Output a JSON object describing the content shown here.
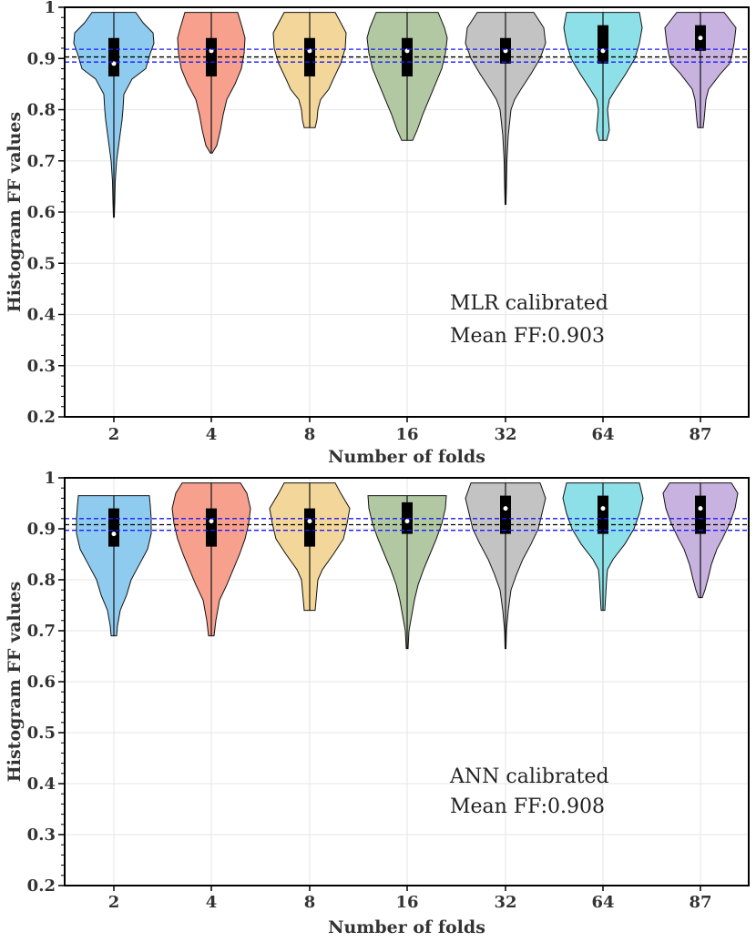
{
  "chart_data": [
    {
      "type": "violin",
      "xlabel": "Number of folds",
      "ylabel": "Histogram FF values",
      "ylim": [
        0.2,
        1.0
      ],
      "yticks": [
        "0.2",
        "0.3",
        "0.4",
        "0.5",
        "0.6",
        "0.7",
        "0.8",
        "0.9",
        "1"
      ],
      "categories": [
        "2",
        "4",
        "8",
        "16",
        "32",
        "64",
        "87"
      ],
      "colors": [
        "#8ecbef",
        "#f7a08e",
        "#f3d699",
        "#b2c8a3",
        "#c3c3c3",
        "#8de0e8",
        "#c8b2df"
      ],
      "annotation": [
        "MLR calibrated",
        "Mean FF:0.903"
      ],
      "reference_lines": [
        0.893,
        0.903,
        0.918
      ],
      "violins": [
        {
          "min": 0.59,
          "max": 0.99,
          "q1": 0.865,
          "median": 0.89,
          "q3": 0.94,
          "profile": [
            [
              0.59,
              0.5
            ],
            [
              0.62,
              1
            ],
            [
              0.66,
              1.5
            ],
            [
              0.7,
              3
            ],
            [
              0.74,
              6
            ],
            [
              0.78,
              9
            ],
            [
              0.8,
              10
            ],
            [
              0.83,
              11
            ],
            [
              0.86,
              20
            ],
            [
              0.88,
              35
            ],
            [
              0.91,
              40
            ],
            [
              0.93,
              44
            ],
            [
              0.95,
              43
            ],
            [
              0.97,
              32
            ],
            [
              0.99,
              24
            ]
          ]
        },
        {
          "min": 0.715,
          "max": 0.99,
          "q1": 0.865,
          "median": 0.915,
          "q3": 0.94,
          "profile": [
            [
              0.715,
              1
            ],
            [
              0.73,
              6
            ],
            [
              0.76,
              10
            ],
            [
              0.79,
              13
            ],
            [
              0.82,
              17
            ],
            [
              0.85,
              26
            ],
            [
              0.88,
              33
            ],
            [
              0.91,
              36
            ],
            [
              0.94,
              37
            ],
            [
              0.96,
              34
            ],
            [
              0.99,
              29
            ]
          ]
        },
        {
          "min": 0.765,
          "max": 0.99,
          "q1": 0.865,
          "median": 0.915,
          "q3": 0.94,
          "profile": [
            [
              0.765,
              6
            ],
            [
              0.78,
              8
            ],
            [
              0.8,
              9
            ],
            [
              0.82,
              12
            ],
            [
              0.84,
              21
            ],
            [
              0.86,
              26
            ],
            [
              0.89,
              34
            ],
            [
              0.92,
              39
            ],
            [
              0.95,
              40
            ],
            [
              0.97,
              34
            ],
            [
              0.99,
              28
            ]
          ]
        },
        {
          "min": 0.74,
          "max": 0.99,
          "q1": 0.865,
          "median": 0.915,
          "q3": 0.94,
          "profile": [
            [
              0.74,
              6
            ],
            [
              0.76,
              11
            ],
            [
              0.79,
              17
            ],
            [
              0.82,
              24
            ],
            [
              0.85,
              31
            ],
            [
              0.88,
              38
            ],
            [
              0.91,
              42
            ],
            [
              0.94,
              44
            ],
            [
              0.96,
              41
            ],
            [
              0.99,
              34
            ]
          ]
        },
        {
          "min": 0.615,
          "max": 0.99,
          "q1": 0.89,
          "median": 0.915,
          "q3": 0.94,
          "profile": [
            [
              0.615,
              0.5
            ],
            [
              0.65,
              1
            ],
            [
              0.7,
              1.5
            ],
            [
              0.75,
              3
            ],
            [
              0.8,
              6
            ],
            [
              0.82,
              10
            ],
            [
              0.84,
              17
            ],
            [
              0.87,
              28
            ],
            [
              0.9,
              38
            ],
            [
              0.93,
              44
            ],
            [
              0.96,
              42
            ],
            [
              0.99,
              31
            ]
          ]
        },
        {
          "min": 0.74,
          "max": 0.99,
          "q1": 0.89,
          "median": 0.915,
          "q3": 0.965,
          "profile": [
            [
              0.74,
              4
            ],
            [
              0.76,
              7
            ],
            [
              0.78,
              6
            ],
            [
              0.8,
              5
            ],
            [
              0.82,
              7
            ],
            [
              0.84,
              14
            ],
            [
              0.87,
              25
            ],
            [
              0.9,
              35
            ],
            [
              0.93,
              40
            ],
            [
              0.96,
              43
            ],
            [
              0.99,
              40
            ]
          ]
        },
        {
          "min": 0.765,
          "max": 0.99,
          "q1": 0.915,
          "median": 0.94,
          "q3": 0.965,
          "profile": [
            [
              0.765,
              3
            ],
            [
              0.78,
              4
            ],
            [
              0.8,
              5
            ],
            [
              0.82,
              6
            ],
            [
              0.84,
              9
            ],
            [
              0.87,
              22
            ],
            [
              0.89,
              32
            ],
            [
              0.91,
              35
            ],
            [
              0.93,
              37
            ],
            [
              0.96,
              39
            ],
            [
              0.99,
              26
            ]
          ]
        }
      ]
    },
    {
      "type": "violin",
      "xlabel": "Number of folds",
      "ylabel": "Histogram FF values",
      "ylim": [
        0.2,
        1.0
      ],
      "yticks": [
        "0.2",
        "0.3",
        "0.4",
        "0.5",
        "0.6",
        "0.7",
        "0.8",
        "0.9",
        "1"
      ],
      "categories": [
        "2",
        "4",
        "8",
        "16",
        "32",
        "64",
        "87"
      ],
      "colors": [
        "#8ecbef",
        "#f7a08e",
        "#f3d699",
        "#b2c8a3",
        "#c3c3c3",
        "#8de0e8",
        "#c8b2df"
      ],
      "annotation": [
        "ANN calibrated",
        "Mean FF:0.908"
      ],
      "reference_lines": [
        0.897,
        0.908,
        0.92
      ],
      "violins": [
        {
          "min": 0.69,
          "max": 0.965,
          "q1": 0.865,
          "median": 0.89,
          "q3": 0.94,
          "profile": [
            [
              0.69,
              3
            ],
            [
              0.71,
              4
            ],
            [
              0.74,
              7
            ],
            [
              0.77,
              14
            ],
            [
              0.8,
              19
            ],
            [
              0.83,
              28
            ],
            [
              0.86,
              37
            ],
            [
              0.89,
              41
            ],
            [
              0.92,
              41
            ],
            [
              0.945,
              40
            ],
            [
              0.965,
              39
            ]
          ]
        },
        {
          "min": 0.69,
          "max": 0.99,
          "q1": 0.865,
          "median": 0.915,
          "q3": 0.94,
          "profile": [
            [
              0.69,
              3
            ],
            [
              0.72,
              5
            ],
            [
              0.76,
              9
            ],
            [
              0.79,
              17
            ],
            [
              0.82,
              24
            ],
            [
              0.85,
              31
            ],
            [
              0.88,
              37
            ],
            [
              0.91,
              41
            ],
            [
              0.94,
              43
            ],
            [
              0.97,
              39
            ],
            [
              0.99,
              32
            ]
          ]
        },
        {
          "min": 0.74,
          "max": 0.99,
          "q1": 0.865,
          "median": 0.915,
          "q3": 0.94,
          "profile": [
            [
              0.74,
              6
            ],
            [
              0.76,
              7
            ],
            [
              0.78,
              8
            ],
            [
              0.8,
              9
            ],
            [
              0.82,
              14
            ],
            [
              0.85,
              26
            ],
            [
              0.88,
              37
            ],
            [
              0.91,
              41
            ],
            [
              0.94,
              44
            ],
            [
              0.97,
              34
            ],
            [
              0.99,
              28
            ]
          ]
        },
        {
          "min": 0.665,
          "max": 0.965,
          "q1": 0.89,
          "median": 0.915,
          "q3": 0.952,
          "profile": [
            [
              0.665,
              1
            ],
            [
              0.7,
              2
            ],
            [
              0.73,
              5
            ],
            [
              0.76,
              8
            ],
            [
              0.79,
              12
            ],
            [
              0.82,
              18
            ],
            [
              0.85,
              25
            ],
            [
              0.88,
              32
            ],
            [
              0.91,
              38
            ],
            [
              0.94,
              42
            ],
            [
              0.965,
              43
            ]
          ]
        },
        {
          "min": 0.665,
          "max": 0.99,
          "q1": 0.89,
          "median": 0.94,
          "q3": 0.965,
          "profile": [
            [
              0.665,
              0.5
            ],
            [
              0.7,
              1
            ],
            [
              0.74,
              3
            ],
            [
              0.78,
              6
            ],
            [
              0.81,
              12
            ],
            [
              0.84,
              19
            ],
            [
              0.87,
              28
            ],
            [
              0.9,
              36
            ],
            [
              0.93,
              40
            ],
            [
              0.96,
              44
            ],
            [
              0.99,
              38
            ]
          ]
        },
        {
          "min": 0.74,
          "max": 0.99,
          "q1": 0.89,
          "median": 0.94,
          "q3": 0.965,
          "profile": [
            [
              0.74,
              2
            ],
            [
              0.77,
              3
            ],
            [
              0.8,
              4
            ],
            [
              0.82,
              5
            ],
            [
              0.84,
              11
            ],
            [
              0.87,
              24
            ],
            [
              0.9,
              34
            ],
            [
              0.93,
              40
            ],
            [
              0.96,
              44
            ],
            [
              0.99,
              40
            ]
          ]
        },
        {
          "min": 0.765,
          "max": 0.99,
          "q1": 0.89,
          "median": 0.94,
          "q3": 0.965,
          "profile": [
            [
              0.765,
              2
            ],
            [
              0.78,
              5
            ],
            [
              0.8,
              8
            ],
            [
              0.83,
              12
            ],
            [
              0.86,
              18
            ],
            [
              0.88,
              24
            ],
            [
              0.91,
              32
            ],
            [
              0.94,
              38
            ],
            [
              0.97,
              41
            ],
            [
              0.99,
              34
            ]
          ]
        }
      ]
    }
  ]
}
